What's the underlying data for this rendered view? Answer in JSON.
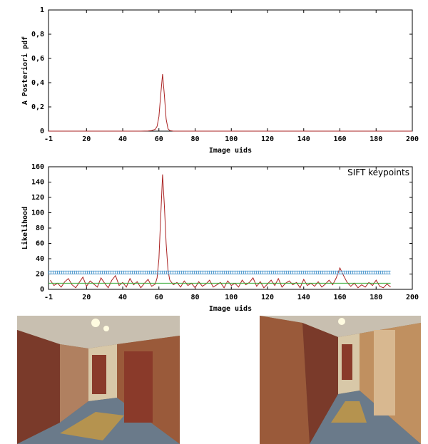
{
  "chart_data": [
    {
      "type": "line",
      "ylabel": "A Posteriori pdf",
      "xlabel": "Image uids",
      "xlim": [
        -1,
        200
      ],
      "ylim": [
        0,
        1
      ],
      "xticks": [
        -1,
        20,
        40,
        60,
        80,
        100,
        120,
        140,
        160,
        180,
        200
      ],
      "xtick_labels": [
        "-1",
        "20",
        "40",
        "60",
        "80",
        "100",
        "120",
        "140",
        "160",
        "180",
        "200"
      ],
      "yticks": [
        0,
        0.2,
        0.4,
        0.6,
        0.8,
        1
      ],
      "ytick_labels": [
        "0",
        "0,2",
        "0,4",
        "0,6",
        "0,8",
        "1"
      ],
      "grid": false,
      "series": [
        {
          "color": "#aa2222",
          "x": [
            -1,
            50,
            54,
            56,
            58,
            59,
            60,
            61,
            62,
            63,
            64,
            65,
            66,
            68,
            200
          ],
          "y": [
            0,
            0,
            0.002,
            0.005,
            0.015,
            0.04,
            0.12,
            0.3,
            0.47,
            0.3,
            0.1,
            0.02,
            0.005,
            0,
            0
          ]
        }
      ]
    },
    {
      "type": "line",
      "ylabel": "Likelihood",
      "xlabel": "Image uids",
      "xlim": [
        -1,
        200
      ],
      "ylim": [
        0,
        160
      ],
      "xticks": [
        -1,
        20,
        40,
        60,
        80,
        100,
        120,
        140,
        160,
        180,
        200
      ],
      "xtick_labels": [
        "-1",
        "20",
        "40",
        "60",
        "80",
        "100",
        "120",
        "140",
        "160",
        "180",
        "200"
      ],
      "yticks": [
        0,
        20,
        40,
        60,
        80,
        100,
        120,
        140,
        160
      ],
      "ytick_labels": [
        "0",
        "20",
        "40",
        "60",
        "80",
        "100",
        "120",
        "140",
        "160"
      ],
      "grid": false,
      "legend": {
        "label": "SIFT keypoints",
        "position": "top-right"
      },
      "series": [
        {
          "name": "SIFT keypoints",
          "color": "#aa2222",
          "x": [
            0,
            2,
            4,
            6,
            8,
            10,
            12,
            14,
            16,
            18,
            20,
            22,
            24,
            26,
            28,
            30,
            32,
            34,
            36,
            38,
            40,
            42,
            44,
            46,
            48,
            50,
            52,
            54,
            56,
            58,
            59,
            60,
            61,
            62,
            63,
            64,
            65,
            66,
            68,
            70,
            72,
            74,
            76,
            78,
            80,
            82,
            84,
            86,
            88,
            90,
            92,
            94,
            96,
            98,
            100,
            102,
            104,
            106,
            108,
            110,
            112,
            114,
            116,
            118,
            120,
            122,
            124,
            126,
            128,
            130,
            132,
            134,
            136,
            138,
            140,
            142,
            144,
            146,
            148,
            150,
            152,
            154,
            156,
            158,
            160,
            162,
            164,
            166,
            168,
            170,
            172,
            174,
            176,
            178,
            180,
            182,
            184,
            186,
            188
          ],
          "y": [
            12,
            5,
            8,
            3,
            10,
            14,
            6,
            2,
            9,
            16,
            4,
            11,
            7,
            3,
            15,
            8,
            2,
            12,
            18,
            5,
            9,
            3,
            14,
            6,
            10,
            2,
            8,
            13,
            4,
            7,
            15,
            40,
            95,
            150,
            110,
            60,
            25,
            12,
            6,
            9,
            3,
            11,
            5,
            8,
            2,
            10,
            4,
            7,
            12,
            3,
            6,
            9,
            2,
            11,
            5,
            8,
            3,
            12,
            6,
            9,
            15,
            4,
            10,
            2,
            7,
            12,
            5,
            14,
            3,
            8,
            11,
            6,
            9,
            2,
            13,
            5,
            8,
            4,
            10,
            3,
            7,
            12,
            6,
            15,
            28,
            18,
            9,
            4,
            8,
            2,
            6,
            3,
            9,
            5,
            12,
            4,
            2,
            7,
            3
          ]
        },
        {
          "color": "#33aa33",
          "x": [
            -1,
            188
          ],
          "y": [
            8,
            8
          ]
        },
        {
          "color": "#5a9fd0",
          "x": [
            -1,
            188
          ],
          "y": [
            22,
            22
          ]
        }
      ]
    }
  ],
  "photos": [
    {
      "name": "left-corridor-photo"
    },
    {
      "name": "right-corridor-photo"
    }
  ]
}
